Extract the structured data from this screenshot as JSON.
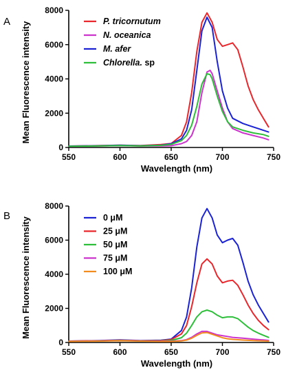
{
  "chart_data": [
    {
      "type": "line",
      "panel_label": "A",
      "xlabel": "Wavelength (nm)",
      "ylabel": "Mean Fluorescence intensity",
      "xlim": [
        550,
        750
      ],
      "ylim": [
        0,
        8000
      ],
      "xticks": [
        550,
        600,
        650,
        700,
        750
      ],
      "yticks": [
        0,
        2000,
        4000,
        6000,
        8000
      ],
      "grid": false,
      "legend_position": "top-left",
      "series": [
        {
          "name": "P. tricornutum",
          "legend_parts": [
            {
              "text": "P. tricornutum",
              "italic": true
            }
          ],
          "color": "#e8262b",
          "points": [
            [
              550,
              80
            ],
            [
              580,
              110
            ],
            [
              600,
              130
            ],
            [
              620,
              110
            ],
            [
              640,
              170
            ],
            [
              650,
              230
            ],
            [
              660,
              700
            ],
            [
              665,
              1500
            ],
            [
              670,
              3200
            ],
            [
              675,
              5600
            ],
            [
              680,
              7300
            ],
            [
              685,
              7850
            ],
            [
              690,
              7300
            ],
            [
              695,
              6300
            ],
            [
              700,
              5900
            ],
            [
              705,
              6000
            ],
            [
              710,
              6100
            ],
            [
              715,
              5700
            ],
            [
              720,
              4700
            ],
            [
              725,
              3600
            ],
            [
              730,
              2800
            ],
            [
              735,
              2200
            ],
            [
              740,
              1700
            ],
            [
              745,
              1200
            ]
          ]
        },
        {
          "name": "N. oceanica",
          "legend_parts": [
            {
              "text": "N. oceanica",
              "italic": true
            }
          ],
          "color": "#cc33cc",
          "points": [
            [
              550,
              70
            ],
            [
              580,
              90
            ],
            [
              600,
              110
            ],
            [
              620,
              90
            ],
            [
              640,
              90
            ],
            [
              650,
              100
            ],
            [
              660,
              220
            ],
            [
              665,
              350
            ],
            [
              670,
              700
            ],
            [
              675,
              1500
            ],
            [
              680,
              3200
            ],
            [
              685,
              4400
            ],
            [
              688,
              4500
            ],
            [
              690,
              4300
            ],
            [
              695,
              3300
            ],
            [
              700,
              2300
            ],
            [
              705,
              1500
            ],
            [
              710,
              1100
            ],
            [
              720,
              850
            ],
            [
              730,
              700
            ],
            [
              740,
              550
            ],
            [
              745,
              450
            ]
          ]
        },
        {
          "name": "M. afer",
          "legend_parts": [
            {
              "text": "M. afer",
              "italic": true
            }
          ],
          "color": "#1a22d4",
          "points": [
            [
              550,
              80
            ],
            [
              580,
              100
            ],
            [
              600,
              130
            ],
            [
              620,
              100
            ],
            [
              640,
              130
            ],
            [
              650,
              220
            ],
            [
              660,
              500
            ],
            [
              665,
              1000
            ],
            [
              670,
              2200
            ],
            [
              675,
              4500
            ],
            [
              680,
              6800
            ],
            [
              685,
              7600
            ],
            [
              690,
              7000
            ],
            [
              695,
              5000
            ],
            [
              700,
              3300
            ],
            [
              705,
              2300
            ],
            [
              710,
              1700
            ],
            [
              720,
              1400
            ],
            [
              730,
              1200
            ],
            [
              740,
              1000
            ],
            [
              745,
              900
            ]
          ]
        },
        {
          "name": "Chlorella. sp",
          "legend_parts": [
            {
              "text": "Chlorella.",
              "italic": true
            },
            {
              "text": " sp",
              "italic": false
            }
          ],
          "color": "#2ebf3a",
          "points": [
            [
              550,
              70
            ],
            [
              580,
              90
            ],
            [
              600,
              110
            ],
            [
              620,
              90
            ],
            [
              640,
              120
            ],
            [
              650,
              180
            ],
            [
              660,
              400
            ],
            [
              665,
              700
            ],
            [
              670,
              1300
            ],
            [
              675,
              2400
            ],
            [
              680,
              3700
            ],
            [
              685,
              4300
            ],
            [
              688,
              4250
            ],
            [
              690,
              4000
            ],
            [
              695,
              3000
            ],
            [
              700,
              2100
            ],
            [
              705,
              1500
            ],
            [
              710,
              1200
            ],
            [
              720,
              1000
            ],
            [
              730,
              850
            ],
            [
              740,
              750
            ],
            [
              745,
              650
            ]
          ]
        }
      ]
    },
    {
      "type": "line",
      "panel_label": "B",
      "xlabel": "Wavelength (nm)",
      "ylabel": "Mean Fluorescence intensity",
      "xlim": [
        550,
        750
      ],
      "ylim": [
        0,
        8000
      ],
      "xticks": [
        550,
        600,
        650,
        700,
        750
      ],
      "yticks": [
        0,
        2000,
        4000,
        6000,
        8000
      ],
      "grid": false,
      "legend_position": "top-left",
      "series": [
        {
          "name": "0 μM",
          "legend_parts": [
            {
              "text": "0 μM",
              "italic": false
            }
          ],
          "color": "#1a22d4",
          "points": [
            [
              550,
              80
            ],
            [
              580,
              110
            ],
            [
              600,
              150
            ],
            [
              620,
              110
            ],
            [
              640,
              130
            ],
            [
              650,
              200
            ],
            [
              660,
              700
            ],
            [
              665,
              1500
            ],
            [
              670,
              3200
            ],
            [
              675,
              5600
            ],
            [
              680,
              7300
            ],
            [
              685,
              7850
            ],
            [
              690,
              7300
            ],
            [
              695,
              6300
            ],
            [
              700,
              5850
            ],
            [
              705,
              6000
            ],
            [
              710,
              6100
            ],
            [
              715,
              5700
            ],
            [
              720,
              4700
            ],
            [
              725,
              3600
            ],
            [
              730,
              2800
            ],
            [
              735,
              2200
            ],
            [
              740,
              1700
            ],
            [
              745,
              1200
            ]
          ]
        },
        {
          "name": "25 μM",
          "legend_parts": [
            {
              "text": "25 μM",
              "italic": false
            }
          ],
          "color": "#e8262b",
          "points": [
            [
              550,
              80
            ],
            [
              580,
              100
            ],
            [
              600,
              130
            ],
            [
              620,
              100
            ],
            [
              640,
              110
            ],
            [
              650,
              170
            ],
            [
              660,
              500
            ],
            [
              665,
              1000
            ],
            [
              670,
              2100
            ],
            [
              675,
              3500
            ],
            [
              680,
              4600
            ],
            [
              685,
              4900
            ],
            [
              690,
              4600
            ],
            [
              695,
              3900
            ],
            [
              700,
              3500
            ],
            [
              705,
              3600
            ],
            [
              710,
              3650
            ],
            [
              715,
              3350
            ],
            [
              720,
              2800
            ],
            [
              725,
              2200
            ],
            [
              730,
              1700
            ],
            [
              735,
              1300
            ],
            [
              740,
              1000
            ],
            [
              745,
              750
            ]
          ]
        },
        {
          "name": "50 μM",
          "legend_parts": [
            {
              "text": "50 μM",
              "italic": false
            }
          ],
          "color": "#2ebf3a",
          "points": [
            [
              550,
              70
            ],
            [
              580,
              90
            ],
            [
              600,
              120
            ],
            [
              620,
              90
            ],
            [
              640,
              90
            ],
            [
              650,
              120
            ],
            [
              660,
              280
            ],
            [
              665,
              550
            ],
            [
              670,
              1000
            ],
            [
              675,
              1500
            ],
            [
              680,
              1800
            ],
            [
              685,
              1900
            ],
            [
              690,
              1800
            ],
            [
              695,
              1600
            ],
            [
              700,
              1450
            ],
            [
              705,
              1500
            ],
            [
              710,
              1500
            ],
            [
              715,
              1400
            ],
            [
              720,
              1150
            ],
            [
              725,
              900
            ],
            [
              730,
              700
            ],
            [
              735,
              550
            ],
            [
              740,
              420
            ],
            [
              745,
              300
            ]
          ]
        },
        {
          "name": "75 μM",
          "legend_parts": [
            {
              "text": "75 μM",
              "italic": false
            }
          ],
          "color": "#cc33cc",
          "points": [
            [
              550,
              70
            ],
            [
              580,
              90
            ],
            [
              600,
              110
            ],
            [
              620,
              90
            ],
            [
              640,
              80
            ],
            [
              650,
              80
            ],
            [
              660,
              110
            ],
            [
              665,
              170
            ],
            [
              670,
              300
            ],
            [
              675,
              500
            ],
            [
              680,
              650
            ],
            [
              685,
              650
            ],
            [
              690,
              550
            ],
            [
              695,
              450
            ],
            [
              700,
              400
            ],
            [
              705,
              350
            ],
            [
              710,
              300
            ],
            [
              720,
              250
            ],
            [
              730,
              200
            ],
            [
              740,
              150
            ],
            [
              745,
              120
            ]
          ]
        },
        {
          "name": "100 μM",
          "legend_parts": [
            {
              "text": "100 μM",
              "italic": false
            }
          ],
          "color": "#f28c1e",
          "points": [
            [
              550,
              60
            ],
            [
              580,
              80
            ],
            [
              600,
              100
            ],
            [
              620,
              80
            ],
            [
              640,
              60
            ],
            [
              650,
              60
            ],
            [
              660,
              90
            ],
            [
              665,
              140
            ],
            [
              670,
              250
            ],
            [
              675,
              420
            ],
            [
              680,
              560
            ],
            [
              685,
              580
            ],
            [
              690,
              480
            ],
            [
              695,
              380
            ],
            [
              700,
              280
            ],
            [
              705,
              220
            ],
            [
              710,
              180
            ],
            [
              720,
              140
            ],
            [
              730,
              110
            ],
            [
              740,
              90
            ],
            [
              745,
              80
            ]
          ]
        }
      ]
    }
  ]
}
